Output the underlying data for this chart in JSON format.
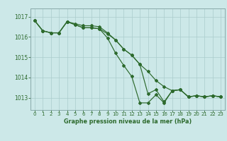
{
  "title": "Graphe pression niveau de la mer (hPa)",
  "bg_color": "#cce8e8",
  "grid_color": "#aacccc",
  "line_color": "#2d6a2d",
  "spine_color": "#88aaaa",
  "x_ticks": [
    0,
    1,
    2,
    3,
    4,
    5,
    6,
    7,
    8,
    9,
    10,
    11,
    12,
    13,
    14,
    15,
    16,
    17,
    18,
    19,
    20,
    21,
    22,
    23
  ],
  "y_ticks": [
    1013,
    1014,
    1015,
    1016,
    1017
  ],
  "ylim": [
    1012.4,
    1017.4
  ],
  "xlim": [
    -0.5,
    23.5
  ],
  "series1": [
    1016.8,
    1016.3,
    1016.2,
    1016.2,
    1016.75,
    1016.65,
    1016.55,
    1016.55,
    1016.5,
    1016.2,
    1015.85,
    1015.4,
    1015.1,
    1014.65,
    1013.2,
    1013.4,
    1012.8,
    1013.35,
    1013.4,
    1013.05,
    1013.1,
    1013.05,
    1013.1,
    1013.05
  ],
  "series2": [
    1016.8,
    1016.3,
    1016.2,
    1016.2,
    1016.75,
    1016.6,
    1016.45,
    1016.45,
    1016.4,
    1015.95,
    1015.2,
    1014.6,
    1014.05,
    1012.75,
    1012.75,
    1013.15,
    1012.75,
    1013.35,
    1013.4,
    1013.05,
    1013.1,
    1013.05,
    1013.1,
    1013.05
  ],
  "series3": [
    1016.8,
    1016.3,
    1016.2,
    1016.2,
    1016.75,
    1016.6,
    1016.45,
    1016.45,
    1016.4,
    1016.15,
    1015.85,
    1015.4,
    1015.1,
    1014.65,
    1014.3,
    1013.85,
    1013.55,
    1013.35,
    1013.4,
    1013.05,
    1013.1,
    1013.05,
    1013.1,
    1013.05
  ],
  "tick_fontsize": 5.0,
  "label_fontsize": 5.5,
  "title_fontsize": 5.8,
  "marker_size": 2.0,
  "line_width": 0.85
}
